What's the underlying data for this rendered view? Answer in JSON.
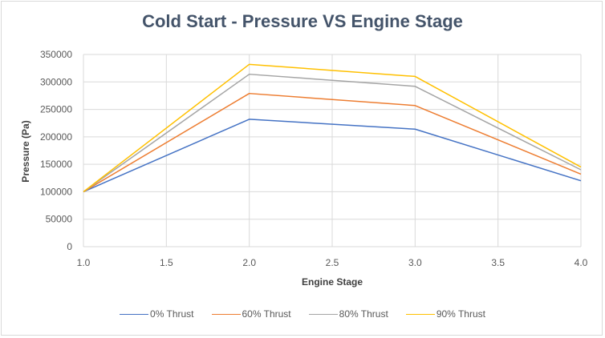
{
  "chart_data": {
    "type": "line",
    "title": "Cold Start - Pressure VS Engine Stage",
    "xlabel": "Engine Stage",
    "ylabel": "Pressure (Pa)",
    "xlim": [
      1.0,
      4.0
    ],
    "ylim": [
      0,
      350000
    ],
    "xticks": [
      "1.0",
      "1.5",
      "2.0",
      "2.5",
      "3.0",
      "3.5",
      "4.0"
    ],
    "yticks": [
      "0",
      "50000",
      "100000",
      "150000",
      "200000",
      "250000",
      "300000",
      "350000"
    ],
    "grid": true,
    "legend_position": "bottom",
    "x": [
      1.0,
      2.0,
      3.0,
      4.0
    ],
    "series": [
      {
        "name": "0% Thrust",
        "color": "#4472c4",
        "values": [
          100000,
          232000,
          214000,
          120000
        ]
      },
      {
        "name": "60% Thrust",
        "color": "#ed7d31",
        "values": [
          100000,
          279000,
          257000,
          132000
        ]
      },
      {
        "name": "80% Thrust",
        "color": "#a5a5a5",
        "values": [
          100000,
          314000,
          292000,
          140000
        ]
      },
      {
        "name": "90% Thrust",
        "color": "#ffc000",
        "values": [
          100000,
          332000,
          310000,
          145000
        ]
      }
    ]
  }
}
